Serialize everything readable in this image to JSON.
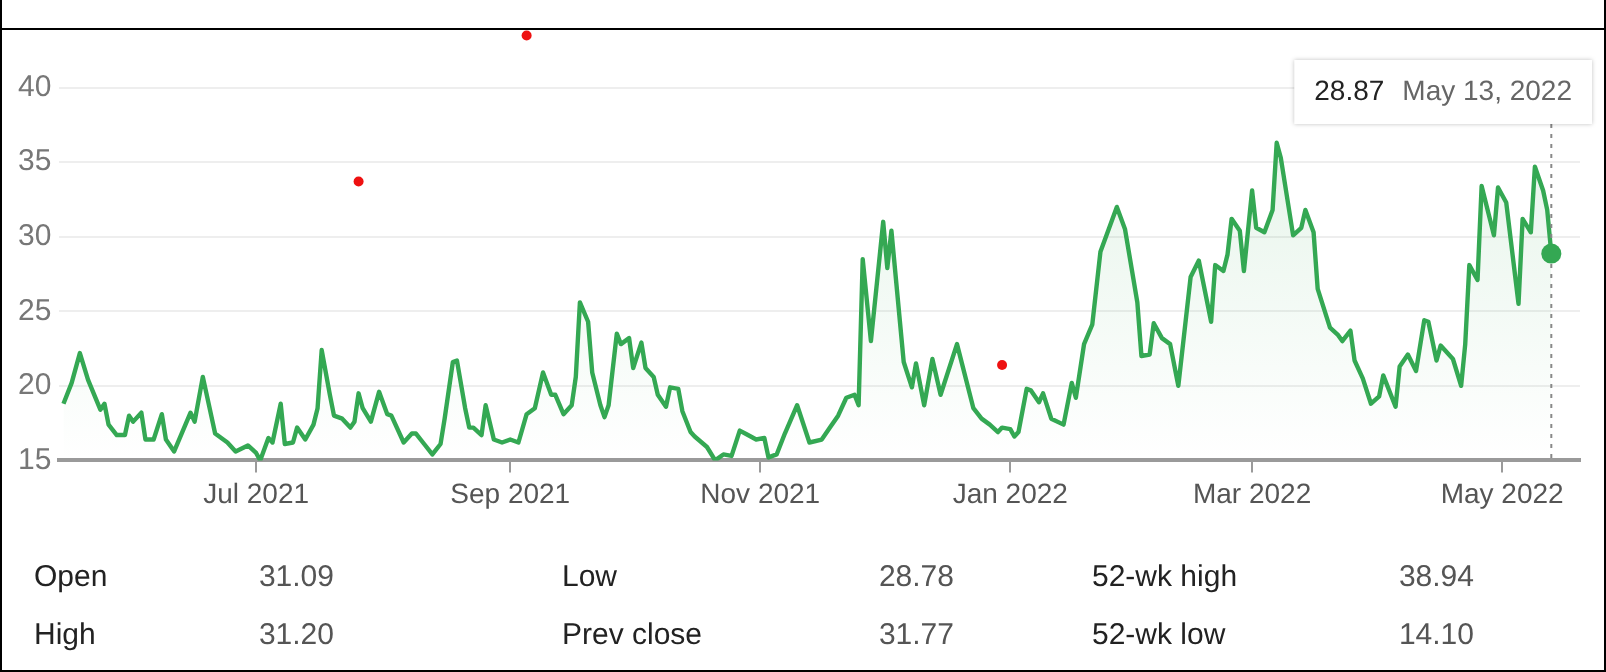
{
  "chart_data": {
    "type": "area",
    "xlim": [
      "2021-05-14",
      "2022-05-20"
    ],
    "ylim": [
      15,
      44
    ],
    "xticks": [
      {
        "value": "2021-07-01",
        "label": "Jul 2021"
      },
      {
        "value": "2021-09-01",
        "label": "Sep 2021"
      },
      {
        "value": "2021-11-01",
        "label": "Nov 2021"
      },
      {
        "value": "2022-01-01",
        "label": "Jan 2022"
      },
      {
        "value": "2022-03-01",
        "label": "Mar 2022"
      },
      {
        "value": "2022-05-01",
        "label": "May 2022"
      }
    ],
    "yticks": [
      15,
      20,
      25,
      30,
      35,
      40
    ],
    "grid": "y",
    "legend": false,
    "series": [
      {
        "color": "#34a853",
        "marker": "none",
        "x": [
          "2021-05-15",
          "2021-05-17",
          "2021-05-19",
          "2021-05-21",
          "2021-05-24",
          "2021-05-25",
          "2021-05-26",
          "2021-05-28",
          "2021-05-30",
          "2021-05-31",
          "2021-06-01",
          "2021-06-03",
          "2021-06-04",
          "2021-06-06",
          "2021-06-08",
          "2021-06-09",
          "2021-06-11",
          "2021-06-15",
          "2021-06-16",
          "2021-06-18",
          "2021-06-21",
          "2021-06-24",
          "2021-06-26",
          "2021-06-29",
          "2021-07-01",
          "2021-07-02",
          "2021-07-04",
          "2021-07-05",
          "2021-07-07",
          "2021-07-08",
          "2021-07-10",
          "2021-07-11",
          "2021-07-13",
          "2021-07-15",
          "2021-07-16",
          "2021-07-17",
          "2021-07-19",
          "2021-07-20",
          "2021-07-22",
          "2021-07-24",
          "2021-07-25",
          "2021-07-26",
          "2021-07-27",
          "2021-07-29",
          "2021-07-31",
          "2021-08-02",
          "2021-08-03",
          "2021-08-06",
          "2021-08-08",
          "2021-08-09",
          "2021-08-11",
          "2021-08-13",
          "2021-08-15",
          "2021-08-16",
          "2021-08-18",
          "2021-08-19",
          "2021-08-21",
          "2021-08-22",
          "2021-08-23",
          "2021-08-25",
          "2021-08-26",
          "2021-08-28",
          "2021-08-30",
          "2021-09-01",
          "2021-09-03",
          "2021-09-05",
          "2021-09-07",
          "2021-09-09",
          "2021-09-11",
          "2021-09-12",
          "2021-09-14",
          "2021-09-16",
          "2021-09-17",
          "2021-09-18",
          "2021-09-20",
          "2021-09-21",
          "2021-09-23",
          "2021-09-24",
          "2021-09-25",
          "2021-09-27",
          "2021-09-28",
          "2021-09-30",
          "2021-10-01",
          "2021-10-03",
          "2021-10-04",
          "2021-10-06",
          "2021-10-07",
          "2021-10-09",
          "2021-10-10",
          "2021-10-12",
          "2021-10-13",
          "2021-10-15",
          "2021-10-16",
          "2021-10-19",
          "2021-10-21",
          "2021-10-23",
          "2021-10-25",
          "2021-10-27",
          "2021-10-29",
          "2021-10-31",
          "2021-11-02",
          "2021-11-03",
          "2021-11-05",
          "2021-11-07",
          "2021-11-10",
          "2021-11-13",
          "2021-11-16",
          "2021-11-18",
          "2021-11-20",
          "2021-11-22",
          "2021-11-24",
          "2021-11-25",
          "2021-11-26",
          "2021-11-28",
          "2021-12-01",
          "2021-12-02",
          "2021-12-03",
          "2021-12-06",
          "2021-12-08",
          "2021-12-09",
          "2021-12-11",
          "2021-12-13",
          "2021-12-15",
          "2021-12-19",
          "2021-12-23",
          "2021-12-25",
          "2021-12-27",
          "2021-12-29",
          "2021-12-30",
          "2022-01-01",
          "2022-01-02",
          "2022-01-03",
          "2022-01-05",
          "2022-01-06",
          "2022-01-08",
          "2022-01-09",
          "2022-01-11",
          "2022-01-14",
          "2022-01-16",
          "2022-01-17",
          "2022-01-19",
          "2022-01-21",
          "2022-01-23",
          "2022-01-27",
          "2022-01-29",
          "2022-02-01",
          "2022-02-02",
          "2022-02-04",
          "2022-02-05",
          "2022-02-07",
          "2022-02-09",
          "2022-02-11",
          "2022-02-14",
          "2022-02-16",
          "2022-02-19",
          "2022-02-20",
          "2022-02-22",
          "2022-02-23",
          "2022-02-24",
          "2022-02-26",
          "2022-02-27",
          "2022-03-01",
          "2022-03-02",
          "2022-03-04",
          "2022-03-06",
          "2022-03-07",
          "2022-03-08",
          "2022-03-11",
          "2022-03-13",
          "2022-03-14",
          "2022-03-16",
          "2022-03-17",
          "2022-03-20",
          "2022-03-22",
          "2022-03-23",
          "2022-03-25",
          "2022-03-26",
          "2022-03-28",
          "2022-03-30",
          "2022-04-01",
          "2022-04-02",
          "2022-04-05",
          "2022-04-06",
          "2022-04-08",
          "2022-04-10",
          "2022-04-12",
          "2022-04-13",
          "2022-04-15",
          "2022-04-16",
          "2022-04-19",
          "2022-04-21",
          "2022-04-22",
          "2022-04-23",
          "2022-04-25",
          "2022-04-26",
          "2022-04-29",
          "2022-04-30",
          "2022-05-02",
          "2022-05-05",
          "2022-05-06",
          "2022-05-08",
          "2022-05-09",
          "2022-05-11",
          "2022-05-12",
          "2022-05-13"
        ],
        "values": [
          18.8,
          20.2,
          22.2,
          20.4,
          18.4,
          18.8,
          17.4,
          16.7,
          16.7,
          18.0,
          17.6,
          18.2,
          16.4,
          16.4,
          18.1,
          16.4,
          15.6,
          18.2,
          17.6,
          20.6,
          16.8,
          16.2,
          15.6,
          16.0,
          15.5,
          15.0,
          16.5,
          16.2,
          18.8,
          16.1,
          16.2,
          17.2,
          16.4,
          17.4,
          18.5,
          22.4,
          19.4,
          18.0,
          17.8,
          17.2,
          17.6,
          19.5,
          18.5,
          17.6,
          19.6,
          18.1,
          18.0,
          16.2,
          16.8,
          16.8,
          16.1,
          15.4,
          16.1,
          17.8,
          21.6,
          21.7,
          18.5,
          17.2,
          17.2,
          16.7,
          18.7,
          16.4,
          16.2,
          16.4,
          16.2,
          18.1,
          18.5,
          20.9,
          19.4,
          19.4,
          18.1,
          18.7,
          20.6,
          25.6,
          24.3,
          20.9,
          18.7,
          17.9,
          18.7,
          23.5,
          22.8,
          23.2,
          21.2,
          22.9,
          21.2,
          20.6,
          19.4,
          18.6,
          19.9,
          19.8,
          18.3,
          16.9,
          16.6,
          15.9,
          15.0,
          15.4,
          15.3,
          17.0,
          16.7,
          16.4,
          16.5,
          15.2,
          15.4,
          16.8,
          18.7,
          16.2,
          16.4,
          17.2,
          18.0,
          19.2,
          19.4,
          18.7,
          28.5,
          23.0,
          31.0,
          27.9,
          30.4,
          21.6,
          19.9,
          21.5,
          18.7,
          21.8,
          19.4,
          22.8,
          18.5,
          17.8,
          17.4,
          16.9,
          17.2,
          17.1,
          16.6,
          16.9,
          19.8,
          19.7,
          18.9,
          19.5,
          17.8,
          17.4,
          20.2,
          19.2,
          22.8,
          24.1,
          29.0,
          32.0,
          30.5,
          25.6,
          22.0,
          22.1,
          24.2,
          23.2,
          22.8,
          20.0,
          27.3,
          28.4,
          24.3,
          28.1,
          27.7,
          28.8,
          31.2,
          30.4,
          27.7,
          33.1,
          30.6,
          30.3,
          31.8,
          36.3,
          35.3,
          30.1,
          30.6,
          31.8,
          30.3,
          26.5,
          23.9,
          23.4,
          23.0,
          23.7,
          21.7,
          20.5,
          18.8,
          19.3,
          20.7,
          18.6,
          21.3,
          22.1,
          21.0,
          24.4,
          24.3,
          21.7,
          22.7,
          21.8,
          20.0,
          22.8,
          28.1,
          27.1,
          33.4,
          30.1,
          33.3,
          32.3,
          25.5,
          31.2,
          30.3,
          34.7,
          33.1,
          31.8,
          28.87
        ]
      },
      {
        "type": "scatter",
        "color": "#ee1111",
        "marker": "circle",
        "x": [
          "2021-07-26",
          "2021-09-05",
          "2021-12-30"
        ],
        "values": [
          33.7,
          43.5,
          21.4
        ]
      }
    ],
    "ref_lines": [
      {
        "axis": "x",
        "value": "2022-05-13",
        "color": "#888888",
        "line_style": "dotted"
      }
    ],
    "annotations": [
      "28.87",
      "May 13, 2022",
      "Open",
      "31.09",
      "Low",
      "28.78",
      "52-wk high",
      "38.94",
      "High",
      "31.20",
      "Prev close",
      "31.77",
      "52-wk low",
      "14.10"
    ]
  }
}
